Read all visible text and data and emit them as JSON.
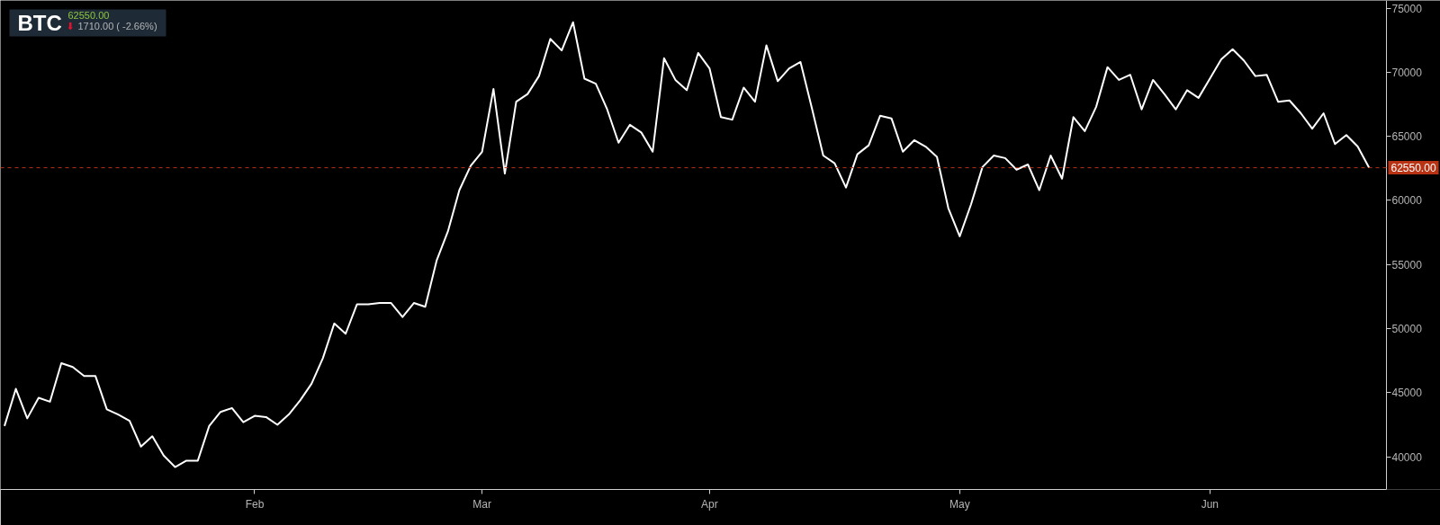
{
  "chart_data": {
    "type": "line",
    "title": "BTC",
    "subtitle": "62550.00",
    "annotations": [
      "⬇",
      "1710.00 ( -2.66%)"
    ],
    "categories": [
      null,
      null,
      null,
      null,
      null,
      null,
      null,
      null,
      null,
      null,
      null,
      null,
      null,
      null,
      null,
      null,
      null,
      null,
      null,
      null,
      null,
      null,
      "Feb",
      null,
      null,
      null,
      null,
      null,
      null,
      null,
      null,
      null,
      null,
      null,
      null,
      null,
      null,
      null,
      null,
      null,
      null,
      null,
      "Mar",
      null,
      null,
      null,
      null,
      null,
      null,
      null,
      null,
      null,
      null,
      null,
      null,
      null,
      null,
      null,
      null,
      null,
      null,
      null,
      "Apr",
      null,
      null,
      null,
      null,
      null,
      null,
      null,
      null,
      null,
      null,
      null,
      null,
      null,
      null,
      null,
      null,
      null,
      null,
      null,
      null,
      null,
      "May",
      null,
      null,
      null,
      null,
      null,
      null,
      null,
      null,
      null,
      null,
      null,
      null,
      null,
      null,
      null,
      null,
      null,
      null,
      null,
      null,
      null,
      "Jun",
      null,
      null,
      null,
      null,
      null,
      null,
      null,
      null,
      null,
      null,
      null,
      null,
      null,
      null
    ],
    "series": [
      {
        "color": "#ffffff",
        "values": [
          42400,
          45300,
          43000,
          44600,
          44300,
          47300,
          47000,
          46300,
          46300,
          43700,
          43300,
          42800,
          40800,
          41600,
          40100,
          39200,
          39700,
          39700,
          42400,
          43500,
          43800,
          42700,
          43200,
          43100,
          42500,
          43300,
          44400,
          45700,
          47700,
          50400,
          49600,
          51900,
          51900,
          52000,
          52000,
          50900,
          52000,
          51700,
          55300,
          57600,
          60800,
          62700,
          63800,
          68700,
          62100,
          67700,
          68300,
          69700,
          72600,
          71700,
          73900,
          69500,
          69100,
          67100,
          64500,
          65900,
          65300,
          63800,
          71100,
          69400,
          68600,
          71500,
          70300,
          66500,
          66300,
          68800,
          67700,
          72100,
          69300,
          70300,
          70800,
          67200,
          63500,
          62900,
          61000,
          63600,
          64300,
          66600,
          66400,
          63800,
          64700,
          64200,
          63400,
          59400,
          57200,
          59700,
          62600,
          63500,
          63300,
          62400,
          62800,
          60800,
          63500,
          61700,
          66500,
          65400,
          67300,
          70400,
          69400,
          69800,
          67100,
          69400,
          68300,
          67100,
          68600,
          68000,
          69500,
          71000,
          71800,
          70900,
          69700,
          69800,
          67700,
          67800,
          66800,
          65600,
          66800,
          64400,
          65100,
          64200,
          62550
        ]
      }
    ],
    "ylim": [
      37450,
      75600
    ],
    "yticks": [
      40000,
      45000,
      50000,
      55000,
      60000,
      65000,
      70000,
      75000
    ],
    "ref_lines": [
      {
        "axis": "y",
        "value": 62550,
        "label": "62550.00",
        "color": "#b83214",
        "line_style": "dashed"
      }
    ]
  }
}
